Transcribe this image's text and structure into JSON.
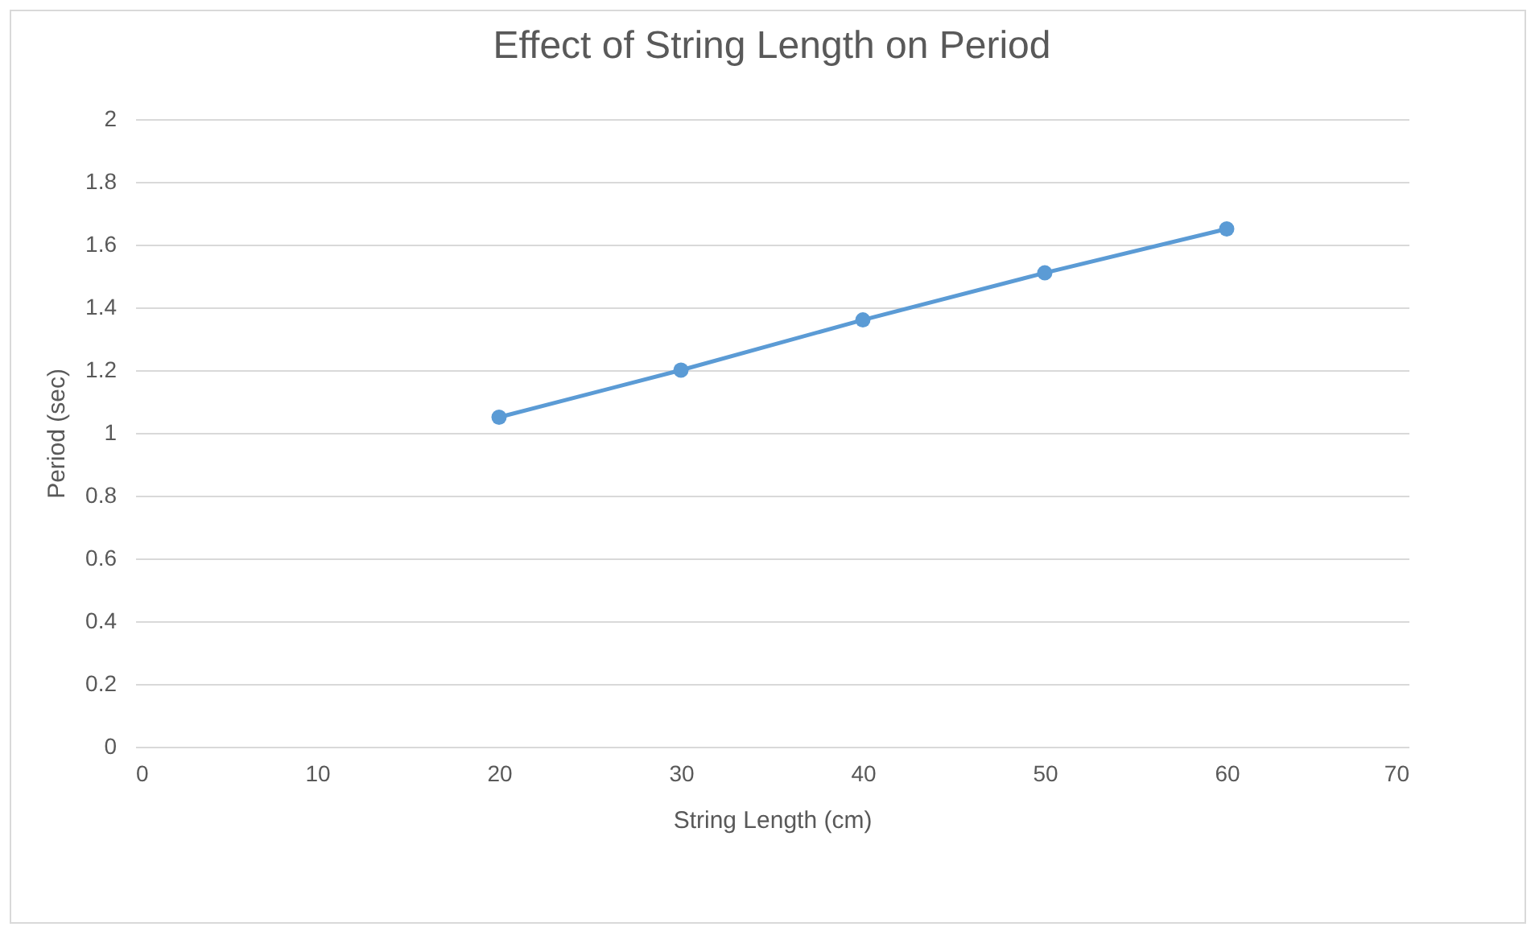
{
  "chart_data": {
    "type": "line",
    "title": "Effect of String Length on Period",
    "xlabel": "String Length  (cm)",
    "ylabel": "Period (sec)",
    "x": [
      20,
      30,
      40,
      50,
      60
    ],
    "series": [
      {
        "color": "#5b9bd5",
        "values": [
          1.05,
          1.2,
          1.36,
          1.51,
          1.65
        ]
      }
    ],
    "xlim": [
      0,
      70
    ],
    "xticks": [
      0,
      10,
      20,
      30,
      40,
      50,
      60,
      70
    ],
    "ylim": [
      0,
      2
    ],
    "yticks": [
      0,
      0.2,
      0.4,
      0.6,
      0.8,
      1,
      1.2,
      1.4,
      1.6,
      1.8,
      2
    ],
    "grid": "y",
    "marker": "circle",
    "line_style": "solid"
  }
}
